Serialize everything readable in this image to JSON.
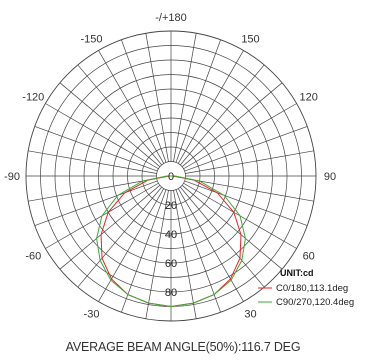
{
  "chart_data": {
    "type": "polar",
    "unit_label": "UNIT:cd",
    "angle_labels": [
      "-/+180",
      "150",
      "120",
      "90",
      "60",
      "30",
      "0",
      "-30",
      "-60",
      "-90",
      "-120",
      "-150"
    ],
    "angle_values": [
      180,
      150,
      120,
      90,
      60,
      30,
      0,
      -30,
      -60,
      -90,
      -120,
      -150
    ],
    "radial_ticks": [
      0,
      20,
      40,
      60,
      80
    ],
    "r_max": 100,
    "series": [
      {
        "name": "C0/180,113.1deg",
        "color": "#e8232a",
        "angles": [
          -90,
          -80,
          -70,
          -60,
          -50,
          -40,
          -30,
          -20,
          -10,
          0,
          10,
          20,
          30,
          40,
          50,
          60,
          70,
          80,
          90
        ],
        "values": [
          1,
          16,
          34,
          50,
          63,
          74,
          82,
          87,
          89,
          90,
          89,
          87,
          82,
          74,
          63,
          50,
          34,
          16,
          1
        ]
      },
      {
        "name": "C90/270,120.4deg",
        "color": "#3aab35",
        "angles": [
          -90,
          -80,
          -70,
          -60,
          -50,
          -40,
          -30,
          -20,
          -10,
          0,
          10,
          20,
          30,
          40,
          50,
          60,
          70,
          80,
          90
        ],
        "values": [
          3,
          20,
          39,
          55,
          67,
          76,
          83,
          87,
          89,
          90,
          89,
          87,
          83,
          76,
          67,
          55,
          39,
          20,
          3
        ]
      }
    ]
  },
  "caption": "AVERAGE BEAM ANGLE(50%):116.7 DEG"
}
